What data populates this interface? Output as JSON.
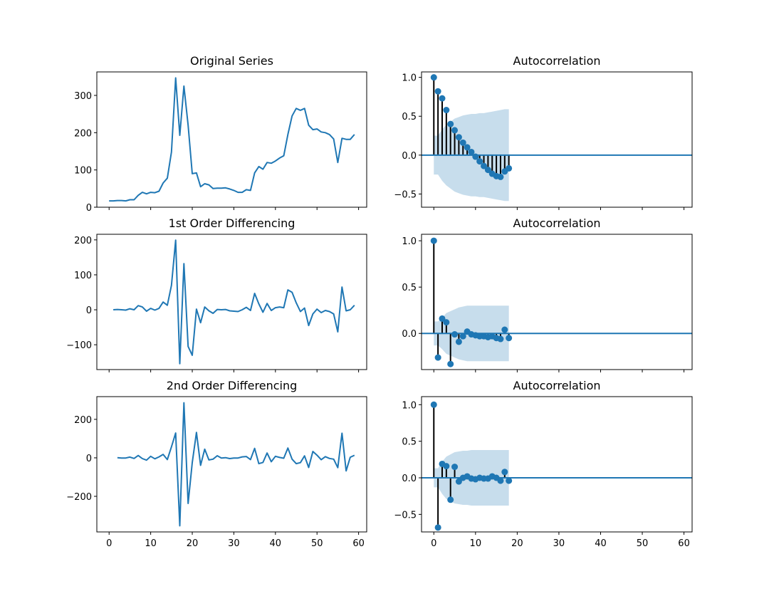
{
  "chart_data": [
    {
      "type": "line",
      "title": "Original Series",
      "color": "#1f77b4",
      "x": [
        0,
        1,
        2,
        3,
        4,
        5,
        6,
        7,
        8,
        9,
        10,
        11,
        12,
        13,
        14,
        15,
        16,
        17,
        18,
        19,
        20,
        21,
        22,
        23,
        24,
        25,
        26,
        27,
        28,
        29,
        30,
        31,
        32,
        33,
        34,
        35,
        36,
        37,
        38,
        39,
        40,
        41,
        42,
        43,
        44,
        45,
        46,
        47,
        48,
        49,
        50,
        51,
        52,
        53,
        54,
        55,
        56,
        57,
        58,
        59
      ],
      "values": [
        17,
        17,
        18,
        18,
        17,
        20,
        20,
        32,
        40,
        36,
        40,
        39,
        43,
        65,
        78,
        148,
        347,
        193,
        325,
        220,
        90,
        92,
        55,
        63,
        60,
        50,
        51,
        51,
        52,
        49,
        45,
        40,
        40,
        47,
        45,
        92,
        109,
        102,
        120,
        118,
        124,
        132,
        138,
        195,
        245,
        265,
        260,
        265,
        220,
        208,
        210,
        202,
        200,
        195,
        183,
        120,
        185,
        182,
        182,
        195
      ],
      "xlim": [
        -2.95,
        61.95
      ],
      "xticks": [
        0,
        10,
        20,
        30,
        40,
        50,
        60
      ],
      "xtick_labels": false,
      "ylim": [
        0,
        363
      ],
      "yticks": [
        0,
        100,
        200,
        300
      ]
    },
    {
      "type": "acf",
      "title": "Autocorrelation",
      "color": "#1f77b4",
      "stem_color": "#000000",
      "x": [
        0,
        1,
        2,
        3,
        4,
        5,
        6,
        7,
        8,
        9,
        10,
        11,
        12,
        13,
        14,
        15,
        16,
        17,
        18
      ],
      "values": [
        1.0,
        0.82,
        0.73,
        0.58,
        0.4,
        0.32,
        0.23,
        0.16,
        0.1,
        0.04,
        -0.02,
        -0.08,
        -0.14,
        -0.19,
        -0.24,
        -0.27,
        -0.28,
        -0.21,
        -0.17
      ],
      "band": [
        0.25,
        0.25,
        0.33,
        0.39,
        0.43,
        0.47,
        0.49,
        0.51,
        0.52,
        0.53,
        0.53,
        0.54,
        0.54,
        0.55,
        0.56,
        0.57,
        0.58,
        0.59,
        0.59
      ],
      "xlim": [
        -2.95,
        61.95
      ],
      "xticks": [
        0,
        10,
        20,
        30,
        40,
        50,
        60
      ],
      "xtick_labels": false,
      "ylim": [
        -0.67,
        1.07
      ],
      "yticks": [
        -0.5,
        0.0,
        0.5,
        1.0
      ],
      "ytick_labels": [
        "−0.5",
        "0.0",
        "0.5",
        "1.0"
      ]
    },
    {
      "type": "line",
      "title": "1st Order Differencing",
      "color": "#1f77b4",
      "x": [
        0,
        1,
        2,
        3,
        4,
        5,
        6,
        7,
        8,
        9,
        10,
        11,
        12,
        13,
        14,
        15,
        16,
        17,
        18,
        19,
        20,
        21,
        22,
        23,
        24,
        25,
        26,
        27,
        28,
        29,
        30,
        31,
        32,
        33,
        34,
        35,
        36,
        37,
        38,
        39,
        40,
        41,
        42,
        43,
        44,
        45,
        46,
        47,
        48,
        49,
        50,
        51,
        52,
        53,
        54,
        55,
        56,
        57,
        58,
        59
      ],
      "values": [
        null,
        0,
        1,
        0,
        -1,
        3,
        0,
        12,
        8,
        -4,
        4,
        -1,
        4,
        22,
        13,
        70,
        199,
        -154,
        132,
        -105,
        -130,
        2,
        -37,
        8,
        -3,
        -10,
        1,
        0,
        1,
        -3,
        -4,
        -5,
        0,
        7,
        -2,
        47,
        17,
        -7,
        18,
        -2,
        6,
        8,
        6,
        57,
        50,
        20,
        -5,
        5,
        -45,
        -12,
        2,
        -8,
        -2,
        -5,
        -12,
        -63,
        65,
        -3,
        0,
        13
      ],
      "xlim": [
        -2.95,
        61.95
      ],
      "xticks": [
        0,
        10,
        20,
        30,
        40,
        50,
        60
      ],
      "xtick_labels": false,
      "ylim": [
        -171,
        216
      ],
      "yticks": [
        -100,
        0,
        100,
        200
      ],
      "ytick_labels": [
        "−100",
        "0",
        "100",
        "200"
      ]
    },
    {
      "type": "acf",
      "title": "Autocorrelation",
      "color": "#1f77b4",
      "stem_color": "#000000",
      "x": [
        0,
        1,
        2,
        3,
        4,
        5,
        6,
        7,
        8,
        9,
        10,
        11,
        12,
        13,
        14,
        15,
        16,
        17,
        18
      ],
      "values": [
        1.0,
        -0.26,
        0.16,
        0.12,
        -0.33,
        -0.01,
        -0.09,
        -0.03,
        0.02,
        -0.01,
        -0.02,
        -0.03,
        -0.03,
        -0.04,
        -0.03,
        -0.05,
        -0.06,
        0.04,
        -0.05
      ],
      "band": [
        0.13,
        0.13,
        0.17,
        0.22,
        0.24,
        0.26,
        0.28,
        0.29,
        0.3,
        0.3,
        0.3,
        0.3,
        0.3,
        0.3,
        0.3,
        0.3,
        0.3,
        0.3,
        0.3
      ],
      "xlim": [
        -2.95,
        61.95
      ],
      "xticks": [
        0,
        10,
        20,
        30,
        40,
        50,
        60
      ],
      "xtick_labels": false,
      "ylim": [
        -0.39,
        1.07
      ],
      "yticks": [
        0.0,
        0.5,
        1.0
      ],
      "ytick_labels": [
        "0.0",
        "0.5",
        "1.0"
      ]
    },
    {
      "type": "line",
      "title": "2nd Order Differencing",
      "color": "#1f77b4",
      "x": [
        0,
        1,
        2,
        3,
        4,
        5,
        6,
        7,
        8,
        9,
        10,
        11,
        12,
        13,
        14,
        15,
        16,
        17,
        18,
        19,
        20,
        21,
        22,
        23,
        24,
        25,
        26,
        27,
        28,
        29,
        30,
        31,
        32,
        33,
        34,
        35,
        36,
        37,
        38,
        39,
        40,
        41,
        42,
        43,
        44,
        45,
        46,
        47,
        48,
        49,
        50,
        51,
        52,
        53,
        54,
        55,
        56,
        57,
        58,
        59
      ],
      "values": [
        null,
        null,
        1,
        -1,
        -1,
        4,
        -3,
        12,
        -4,
        -12,
        8,
        -5,
        5,
        18,
        -9,
        57,
        129,
        -353,
        286,
        -237,
        -25,
        132,
        -39,
        45,
        -11,
        -7,
        11,
        -1,
        1,
        -4,
        -1,
        -1,
        5,
        7,
        -9,
        49,
        -30,
        -24,
        25,
        -20,
        8,
        2,
        -2,
        51,
        -7,
        -30,
        -25,
        10,
        -50,
        33,
        14,
        -10,
        6,
        -3,
        -7,
        -51,
        128,
        -68,
        3,
        13
      ],
      "xlim": [
        -2.95,
        61.95
      ],
      "xticks": [
        0,
        10,
        20,
        30,
        40,
        50,
        60
      ],
      "xtick_labels": true,
      "ylim": [
        -385,
        318
      ],
      "yticks": [
        -200,
        0,
        200
      ],
      "ytick_labels": [
        "−200",
        "0",
        "200"
      ]
    },
    {
      "type": "acf",
      "title": "Autocorrelation",
      "color": "#1f77b4",
      "stem_color": "#000000",
      "x": [
        0,
        1,
        2,
        3,
        4,
        5,
        6,
        7,
        8,
        9,
        10,
        11,
        12,
        13,
        14,
        15,
        16,
        17,
        18
      ],
      "values": [
        1.0,
        -0.68,
        0.19,
        0.16,
        -0.3,
        0.15,
        -0.05,
        0.0,
        0.02,
        -0.01,
        -0.02,
        0.0,
        -0.01,
        -0.01,
        0.02,
        0.0,
        -0.04,
        0.08,
        -0.04
      ],
      "band": [
        0.13,
        0.13,
        0.22,
        0.29,
        0.32,
        0.35,
        0.36,
        0.37,
        0.37,
        0.38,
        0.38,
        0.38,
        0.38,
        0.38,
        0.38,
        0.38,
        0.38,
        0.38,
        0.38
      ],
      "xlim": [
        -2.95,
        61.95
      ],
      "xticks": [
        0,
        10,
        20,
        30,
        40,
        50,
        60
      ],
      "xtick_labels": true,
      "ylim": [
        -0.74,
        1.11
      ],
      "yticks": [
        -0.5,
        0.0,
        0.5,
        1.0
      ],
      "ytick_labels": [
        "−0.5",
        "0.0",
        "0.5",
        "1.0"
      ]
    }
  ]
}
